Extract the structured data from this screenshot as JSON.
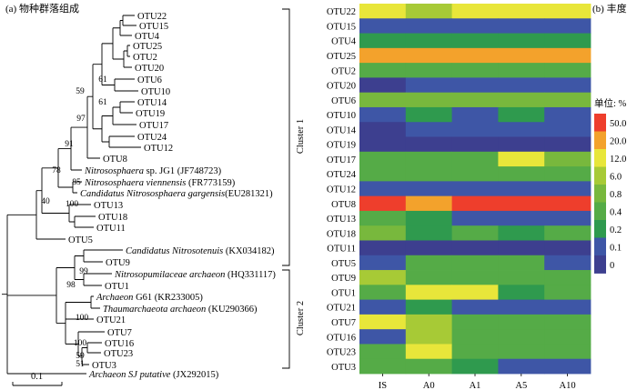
{
  "panel_a_title": "(a) 物种群落组成",
  "panel_b_title": "(b) 丰度",
  "colors": {
    "c0": "#3d3f8f",
    "c01": "#3e56a6",
    "c02": "#2f9a4e",
    "c04": "#55ab47",
    "c08": "#78b83d",
    "c6": "#a7ca36",
    "c12": "#e8e63a",
    "c20": "#f3a22c",
    "c50": "#ee3e2c"
  },
  "tree": {
    "scale_label": "0.1",
    "cluster1_label": "Cluster 1",
    "cluster2_label": "Cluster 2",
    "leaves": [
      {
        "id": "OTU22",
        "plain": "OTU22"
      },
      {
        "id": "OTU15",
        "plain": "OTU15"
      },
      {
        "id": "OTU4",
        "plain": "OTU4"
      },
      {
        "id": "OTU25",
        "plain": "OTU25"
      },
      {
        "id": "OTU2",
        "plain": "OTU2"
      },
      {
        "id": "OTU20",
        "plain": "OTU20"
      },
      {
        "id": "OTU6",
        "plain": "OTU6"
      },
      {
        "id": "OTU10",
        "plain": "OTU10"
      },
      {
        "id": "OTU14",
        "plain": "OTU14"
      },
      {
        "id": "OTU19",
        "plain": "OTU19"
      },
      {
        "id": "OTU17",
        "plain": "OTU17"
      },
      {
        "id": "OTU24",
        "plain": "OTU24"
      },
      {
        "id": "OTU12",
        "plain": "OTU12"
      },
      {
        "id": "OTU8",
        "plain": "OTU8"
      },
      {
        "id": "nitroso-jg1",
        "italic": "Nitrososphaera",
        "plain": " sp. JG1 (JF748723)"
      },
      {
        "id": "nitroso-vien",
        "italic": "Nitrososphaera viennensis",
        "plain": " (FR773159)"
      },
      {
        "id": "cand-garg",
        "italic": "Candidatus Nitrososphaera gargensis",
        "plain": "(EU281321)"
      },
      {
        "id": "OTU13",
        "plain": "OTU13"
      },
      {
        "id": "OTU18",
        "plain": "OTU18"
      },
      {
        "id": "OTU11",
        "plain": "OTU11"
      },
      {
        "id": "OTU5",
        "plain": "OTU5"
      },
      {
        "id": "cand-nitrosot",
        "italic": "Candidatus Nitrosotenuis",
        "plain": " (KX034182)"
      },
      {
        "id": "OTU9",
        "plain": "OTU9"
      },
      {
        "id": "nitrosopum",
        "italic": "Nitrosopumilaceae archaeon",
        "plain": " (HQ331117)"
      },
      {
        "id": "OTU1",
        "plain": "OTU1"
      },
      {
        "id": "archaeon-g61",
        "italic": "Archaeon",
        "plain": " G61 (KR233005)"
      },
      {
        "id": "thaum",
        "italic": "Thaumarchaeota archaeon",
        "plain": " (KU290366)"
      },
      {
        "id": "OTU21",
        "plain": "OTU21"
      },
      {
        "id": "OTU7",
        "plain": "OTU7"
      },
      {
        "id": "OTU16",
        "plain": "OTU16"
      },
      {
        "id": "OTU23",
        "plain": "OTU23"
      },
      {
        "id": "OTU3",
        "plain": "OTU3"
      },
      {
        "id": "archaeon-sj",
        "italic": "Archaeon SJ putative",
        "plain": " (JX292015)"
      }
    ],
    "bootstrap": [
      "59",
      "61",
      "61",
      "97",
      "91",
      "78",
      "85",
      "40",
      "100",
      "99",
      "98",
      "100",
      "100",
      "59",
      "51"
    ]
  },
  "chart_data": {
    "type": "heatmap",
    "title": "",
    "xlabel": "",
    "ylabel": "",
    "columns": [
      "IS",
      "A0",
      "A1",
      "A5",
      "A10"
    ],
    "rows": [
      "OTU22",
      "OTU15",
      "OTU4",
      "OTU25",
      "OTU2",
      "OTU20",
      "OTU6",
      "OTU10",
      "OTU14",
      "OTU19",
      "OTU17",
      "OTU24",
      "OTU12",
      "OTU8",
      "OTU13",
      "OTU18",
      "OTU11",
      "OTU5",
      "OTU9",
      "OTU1",
      "OTU21",
      "OTU7",
      "OTU16",
      "OTU23",
      "OTU3"
    ],
    "legend_title": "单位: %",
    "legend_levels": [
      "50.0",
      "20.0",
      "12.0",
      "6.0",
      "0.8",
      "0.4",
      "0.2",
      "0.1",
      "0"
    ],
    "legend_placement": "right",
    "values": [
      [
        12.0,
        6.0,
        12.0,
        12.0,
        12.0
      ],
      [
        0.1,
        0.1,
        0.1,
        0.1,
        0.1
      ],
      [
        0.2,
        0.2,
        0.2,
        0.2,
        0.2
      ],
      [
        20.0,
        20.0,
        20.0,
        20.0,
        20.0
      ],
      [
        0.4,
        0.4,
        0.4,
        0.4,
        0.4
      ],
      [
        0,
        0.1,
        0.1,
        0.1,
        0.1
      ],
      [
        0.8,
        0.8,
        0.8,
        0.8,
        0.8
      ],
      [
        0.1,
        0.2,
        0.1,
        0.2,
        0.1
      ],
      [
        0,
        0.1,
        0.1,
        0.1,
        0.1
      ],
      [
        0,
        0,
        0,
        0,
        0
      ],
      [
        0.4,
        0.4,
        0.4,
        12.0,
        0.8
      ],
      [
        0.4,
        0.4,
        0.4,
        0.4,
        0.4
      ],
      [
        0.1,
        0.1,
        0.1,
        0.1,
        0.1
      ],
      [
        50.0,
        20.0,
        50.0,
        50.0,
        50.0
      ],
      [
        0.4,
        0.2,
        0.1,
        0.1,
        0.1
      ],
      [
        0.8,
        0.2,
        0.4,
        0.2,
        0.4
      ],
      [
        0,
        0,
        0,
        0,
        0
      ],
      [
        0.1,
        0.4,
        0.4,
        0.4,
        0.1
      ],
      [
        6.0,
        0.4,
        0.4,
        0.4,
        0.4
      ],
      [
        0.4,
        12.0,
        12.0,
        0.2,
        0.4
      ],
      [
        0.1,
        0.2,
        0.1,
        0.1,
        0.1
      ],
      [
        12.0,
        6.0,
        0.4,
        0.4,
        0.4
      ],
      [
        0.1,
        6.0,
        0.4,
        0.4,
        0.4
      ],
      [
        0.4,
        12.0,
        0.4,
        0.4,
        0.4
      ],
      [
        0.4,
        0.4,
        0.2,
        0.1,
        0.1
      ]
    ]
  }
}
